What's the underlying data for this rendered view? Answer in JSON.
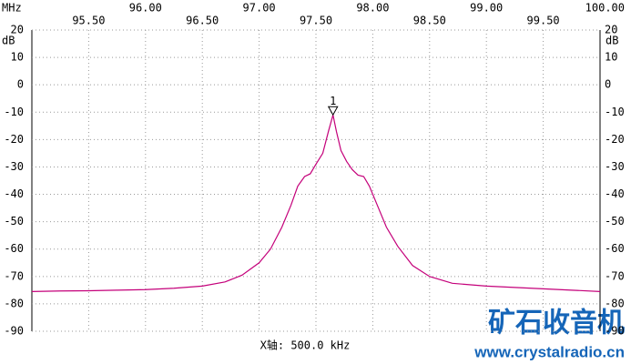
{
  "chart_data": {
    "type": "line",
    "x_unit": "MHz",
    "y_unit": "dB",
    "xlabel": "X轴: 500.0 kHz",
    "xlim": [
      95,
      100
    ],
    "ylim": [
      -90,
      20
    ],
    "xticks": [
      {
        "value": 95.5,
        "label": "95.50"
      },
      {
        "value": 96,
        "label": "96.00"
      },
      {
        "value": 96.5,
        "label": "96.50"
      },
      {
        "value": 97,
        "label": "97.00"
      },
      {
        "value": 97.5,
        "label": "97.50"
      },
      {
        "value": 98,
        "label": "98.00"
      },
      {
        "value": 98.5,
        "label": "98.50"
      },
      {
        "value": 99,
        "label": "99.00"
      },
      {
        "value": 99.5,
        "label": "99.50"
      },
      {
        "value": 100,
        "label": "100.00"
      }
    ],
    "yticks": [
      20,
      10,
      0,
      -10,
      -20,
      -30,
      -40,
      -50,
      -60,
      -70,
      -80,
      -90
    ],
    "grid": true,
    "series": [
      {
        "color": "#c4007a",
        "x": [
          95.0,
          95.25,
          95.5,
          95.75,
          96.0,
          96.25,
          96.5,
          96.7,
          96.85,
          97.0,
          97.1,
          97.2,
          97.28,
          97.34,
          97.4,
          97.45,
          97.5,
          97.56,
          97.61,
          97.65,
          97.68,
          97.72,
          97.77,
          97.82,
          97.87,
          97.92,
          97.97,
          98.04,
          98.12,
          98.22,
          98.35,
          98.5,
          98.7,
          99.0,
          99.25,
          99.5,
          99.75,
          100.0
        ],
        "values": [
          -75.5,
          -75.3,
          -75.2,
          -75,
          -74.8,
          -74.3,
          -73.5,
          -72,
          -69.5,
          -65,
          -60,
          -52,
          -44,
          -37,
          -33.5,
          -32.5,
          -29,
          -25,
          -17,
          -11,
          -17,
          -24,
          -28,
          -31,
          -33,
          -33.5,
          -37,
          -44,
          -52,
          -59,
          -66,
          -70,
          -72.5,
          -73.5,
          -74,
          -74.5,
          -75,
          -75.5
        ]
      }
    ],
    "marker": {
      "label": "1",
      "x": 97.65,
      "value": -11
    },
    "watermark": [
      "矿石收音机",
      "www.crystalradio.cn"
    ]
  }
}
